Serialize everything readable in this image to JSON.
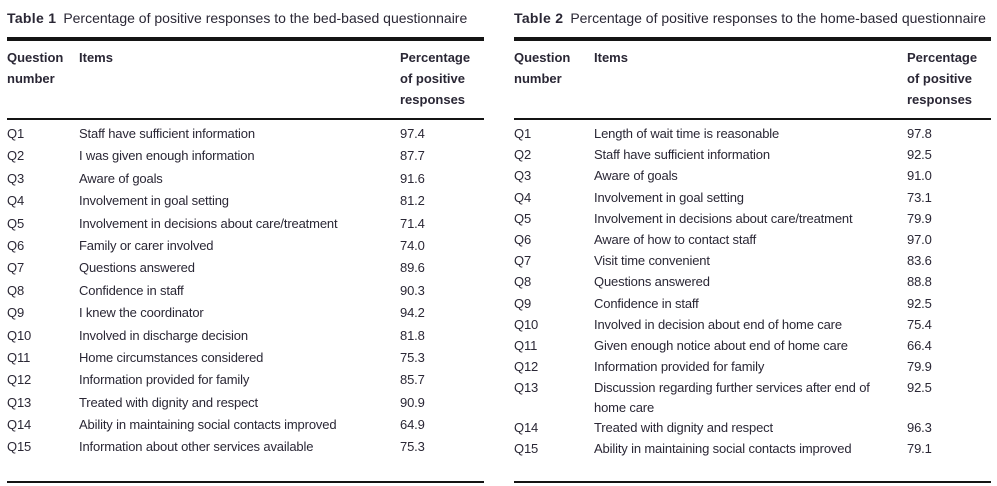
{
  "page": {
    "background": "#ffffff",
    "text_color": "#2a2735",
    "rule_color": "#141414"
  },
  "tables": [
    {
      "label": "Table 1",
      "caption": "Percentage of positive responses to the bed-based questionnaire",
      "columns": {
        "question": "Question number",
        "items": "Items",
        "percentage": "Percentage of positive responses"
      },
      "rows": [
        {
          "question": "Q1",
          "item": "Staff have sufficient information",
          "value": "97.4"
        },
        {
          "question": "Q2",
          "item": "I was given enough information",
          "value": "87.7"
        },
        {
          "question": "Q3",
          "item": "Aware of goals",
          "value": "91.6"
        },
        {
          "question": "Q4",
          "item": "Involvement in goal setting",
          "value": "81.2"
        },
        {
          "question": "Q5",
          "item": "Involvement in decisions about care/treatment",
          "value": "71.4"
        },
        {
          "question": "Q6",
          "item": "Family or carer involved",
          "value": "74.0"
        },
        {
          "question": "Q7",
          "item": "Questions answered",
          "value": "89.6"
        },
        {
          "question": "Q8",
          "item": "Confidence in staff",
          "value": "90.3"
        },
        {
          "question": "Q9",
          "item": "I knew the coordinator",
          "value": "94.2"
        },
        {
          "question": "Q10",
          "item": "Involved in discharge decision",
          "value": "81.8"
        },
        {
          "question": "Q11",
          "item": "Home circumstances considered",
          "value": "75.3"
        },
        {
          "question": "Q12",
          "item": "Information provided for family",
          "value": "85.7"
        },
        {
          "question": "Q13",
          "item": "Treated with dignity and respect",
          "value": "90.9"
        },
        {
          "question": "Q14",
          "item": "Ability in maintaining social contacts improved",
          "value": "64.9"
        },
        {
          "question": "Q15",
          "item": "Information about other services available",
          "value": "75.3"
        }
      ]
    },
    {
      "label": "Table 2",
      "caption": "Percentage of positive responses to the home-based questionnaire",
      "columns": {
        "question": "Question number",
        "items": "Items",
        "percentage": "Percentage of positive responses"
      },
      "rows": [
        {
          "question": "Q1",
          "item": "Length of wait time is reasonable",
          "value": "97.8"
        },
        {
          "question": "Q2",
          "item": "Staff have sufficient information",
          "value": "92.5"
        },
        {
          "question": "Q3",
          "item": "Aware of goals",
          "value": "91.0"
        },
        {
          "question": "Q4",
          "item": "Involvement in goal setting",
          "value": "73.1"
        },
        {
          "question": "Q5",
          "item": "Involvement in decisions about care/treatment",
          "value": "79.9"
        },
        {
          "question": "Q6",
          "item": "Aware of how to contact staff",
          "value": "97.0"
        },
        {
          "question": "Q7",
          "item": "Visit time convenient",
          "value": "83.6"
        },
        {
          "question": "Q8",
          "item": "Questions answered",
          "value": "88.8"
        },
        {
          "question": "Q9",
          "item": "Confidence in staff",
          "value": "92.5"
        },
        {
          "question": "Q10",
          "item": "Involved in decision about end of home care",
          "value": "75.4"
        },
        {
          "question": "Q11",
          "item": "Given enough notice about end of home care",
          "value": "66.4"
        },
        {
          "question": "Q12",
          "item": "Information provided for family",
          "value": "79.9"
        },
        {
          "question": "Q13",
          "item": "Discussion regarding further services after end of home care",
          "value": "92.5"
        },
        {
          "question": "Q14",
          "item": "Treated with dignity and respect",
          "value": "96.3"
        },
        {
          "question": "Q15",
          "item": "Ability in maintaining social contacts improved",
          "value": "79.1"
        }
      ]
    }
  ]
}
